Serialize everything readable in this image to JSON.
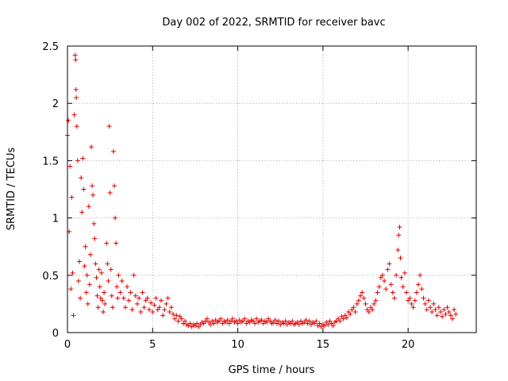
{
  "chart_data": {
    "type": "scatter",
    "title": "Day 002 of 2022, SRMTID for receiver bavc",
    "xlabel": "GPS time / hours",
    "ylabel": "SRMTID / TECUs",
    "xlim": [
      0,
      24
    ],
    "ylim": [
      0,
      2.5
    ],
    "xticks": [
      0,
      5,
      10,
      15,
      20
    ],
    "xtick_labels": [
      "0",
      "5",
      "10",
      "15",
      "20"
    ],
    "yticks": [
      0,
      0.5,
      1,
      1.5,
      2,
      2.5
    ],
    "ytick_labels": [
      "0",
      "0.5",
      "1",
      "1.5",
      "2",
      "2.5"
    ],
    "grid": true,
    "marker": "+",
    "colors": {
      "points": "#e00000",
      "grid": "#a0a0a0",
      "axes": "#000000"
    },
    "series": [
      {
        "name": "SRMTID",
        "points": [
          [
            0.0,
            1.72
          ],
          [
            0.05,
            1.85
          ],
          [
            0.1,
            0.88
          ],
          [
            0.15,
            1.45
          ],
          [
            0.2,
            0.38
          ],
          [
            0.25,
            1.18
          ],
          [
            0.3,
            0.52
          ],
          [
            0.35,
            0.15
          ],
          [
            0.4,
            1.9
          ],
          [
            0.45,
            2.42
          ],
          [
            0.48,
            2.38
          ],
          [
            0.5,
            2.12
          ],
          [
            0.52,
            2.05
          ],
          [
            0.55,
            1.8
          ],
          [
            0.6,
            1.5
          ],
          [
            0.65,
            0.45
          ],
          [
            0.7,
            0.62
          ],
          [
            0.75,
            0.3
          ],
          [
            0.8,
            1.35
          ],
          [
            0.85,
            1.05
          ],
          [
            0.9,
            1.52
          ],
          [
            0.95,
            1.25
          ],
          [
            1.0,
            0.58
          ],
          [
            1.05,
            0.75
          ],
          [
            1.1,
            0.35
          ],
          [
            1.15,
            0.5
          ],
          [
            1.2,
            0.25
          ],
          [
            1.25,
            1.1
          ],
          [
            1.3,
            0.42
          ],
          [
            1.35,
            0.68
          ],
          [
            1.4,
            1.62
          ],
          [
            1.45,
            1.28
          ],
          [
            1.5,
            1.2
          ],
          [
            1.55,
            0.95
          ],
          [
            1.6,
            0.82
          ],
          [
            1.65,
            0.6
          ],
          [
            1.7,
            0.48
          ],
          [
            1.75,
            0.32
          ],
          [
            1.8,
            0.22
          ],
          [
            1.85,
            0.55
          ],
          [
            1.9,
            0.4
          ],
          [
            1.95,
            0.3
          ],
          [
            2.0,
            0.52
          ],
          [
            2.05,
            0.28
          ],
          [
            2.1,
            0.18
          ],
          [
            2.15,
            0.35
          ],
          [
            2.2,
            0.25
          ],
          [
            2.3,
            0.78
          ],
          [
            2.35,
            0.6
          ],
          [
            2.4,
            0.45
          ],
          [
            2.45,
            1.8
          ],
          [
            2.5,
            1.22
          ],
          [
            2.55,
            0.55
          ],
          [
            2.6,
            0.32
          ],
          [
            2.65,
            0.22
          ],
          [
            2.7,
            1.58
          ],
          [
            2.75,
            1.28
          ],
          [
            2.8,
            1.0
          ],
          [
            2.85,
            0.78
          ],
          [
            2.9,
            0.4
          ],
          [
            2.95,
            0.3
          ],
          [
            3.0,
            0.5
          ],
          [
            3.1,
            0.35
          ],
          [
            3.2,
            0.45
          ],
          [
            3.3,
            0.3
          ],
          [
            3.4,
            0.22
          ],
          [
            3.5,
            0.4
          ],
          [
            3.6,
            0.28
          ],
          [
            3.7,
            0.35
          ],
          [
            3.8,
            0.2
          ],
          [
            3.9,
            0.5
          ],
          [
            4.0,
            0.32
          ],
          [
            4.1,
            0.25
          ],
          [
            4.2,
            0.3
          ],
          [
            4.3,
            0.18
          ],
          [
            4.4,
            0.35
          ],
          [
            4.5,
            0.22
          ],
          [
            4.6,
            0.28
          ],
          [
            4.7,
            0.3
          ],
          [
            4.8,
            0.2
          ],
          [
            4.9,
            0.26
          ],
          [
            5.0,
            0.18
          ],
          [
            5.1,
            0.24
          ],
          [
            5.2,
            0.3
          ],
          [
            5.3,
            0.2
          ],
          [
            5.4,
            0.22
          ],
          [
            5.5,
            0.28
          ],
          [
            5.6,
            0.15
          ],
          [
            5.7,
            0.2
          ],
          [
            5.8,
            0.25
          ],
          [
            5.9,
            0.3
          ],
          [
            6.0,
            0.18
          ],
          [
            6.1,
            0.22
          ],
          [
            6.2,
            0.16
          ],
          [
            6.3,
            0.12
          ],
          [
            6.4,
            0.15
          ],
          [
            6.5,
            0.1
          ],
          [
            6.6,
            0.14
          ],
          [
            6.7,
            0.12
          ],
          [
            6.8,
            0.08
          ],
          [
            6.9,
            0.1
          ],
          [
            7.0,
            0.07
          ],
          [
            7.1,
            0.06
          ],
          [
            7.2,
            0.08
          ],
          [
            7.3,
            0.05
          ],
          [
            7.4,
            0.07
          ],
          [
            7.5,
            0.06
          ],
          [
            7.6,
            0.08
          ],
          [
            7.7,
            0.05
          ],
          [
            7.8,
            0.07
          ],
          [
            7.9,
            0.09
          ],
          [
            8.0,
            0.08
          ],
          [
            8.1,
            0.1
          ],
          [
            8.2,
            0.12
          ],
          [
            8.3,
            0.09
          ],
          [
            8.4,
            0.07
          ],
          [
            8.5,
            0.1
          ],
          [
            8.6,
            0.08
          ],
          [
            8.7,
            0.11
          ],
          [
            8.8,
            0.09
          ],
          [
            8.9,
            0.1
          ],
          [
            9.0,
            0.12
          ],
          [
            9.1,
            0.08
          ],
          [
            9.2,
            0.1
          ],
          [
            9.3,
            0.09
          ],
          [
            9.4,
            0.11
          ],
          [
            9.5,
            0.08
          ],
          [
            9.6,
            0.1
          ],
          [
            9.7,
            0.12
          ],
          [
            9.8,
            0.09
          ],
          [
            9.9,
            0.1
          ],
          [
            10.0,
            0.08
          ],
          [
            10.1,
            0.11
          ],
          [
            10.2,
            0.09
          ],
          [
            10.3,
            0.1
          ],
          [
            10.4,
            0.12
          ],
          [
            10.5,
            0.08
          ],
          [
            10.6,
            0.1
          ],
          [
            10.7,
            0.09
          ],
          [
            10.8,
            0.11
          ],
          [
            10.9,
            0.1
          ],
          [
            11.0,
            0.08
          ],
          [
            11.1,
            0.12
          ],
          [
            11.2,
            0.09
          ],
          [
            11.3,
            0.1
          ],
          [
            11.4,
            0.11
          ],
          [
            11.5,
            0.08
          ],
          [
            11.6,
            0.1
          ],
          [
            11.7,
            0.09
          ],
          [
            11.8,
            0.12
          ],
          [
            11.9,
            0.1
          ],
          [
            12.0,
            0.08
          ],
          [
            12.1,
            0.09
          ],
          [
            12.2,
            0.11
          ],
          [
            12.3,
            0.08
          ],
          [
            12.4,
            0.1
          ],
          [
            12.5,
            0.07
          ],
          [
            12.6,
            0.09
          ],
          [
            12.7,
            0.08
          ],
          [
            12.8,
            0.1
          ],
          [
            12.9,
            0.07
          ],
          [
            13.0,
            0.09
          ],
          [
            13.1,
            0.08
          ],
          [
            13.2,
            0.1
          ],
          [
            13.3,
            0.07
          ],
          [
            13.4,
            0.08
          ],
          [
            13.5,
            0.09
          ],
          [
            13.6,
            0.07
          ],
          [
            13.7,
            0.1
          ],
          [
            13.8,
            0.08
          ],
          [
            13.9,
            0.09
          ],
          [
            14.0,
            0.11
          ],
          [
            14.1,
            0.08
          ],
          [
            14.2,
            0.1
          ],
          [
            14.3,
            0.07
          ],
          [
            14.4,
            0.09
          ],
          [
            14.5,
            0.08
          ],
          [
            14.6,
            0.1
          ],
          [
            14.7,
            0.06
          ],
          [
            14.8,
            0.08
          ],
          [
            14.9,
            0.05
          ],
          [
            15.0,
            0.07
          ],
          [
            15.1,
            0.06
          ],
          [
            15.2,
            0.09
          ],
          [
            15.3,
            0.07
          ],
          [
            15.4,
            0.1
          ],
          [
            15.5,
            0.08
          ],
          [
            15.6,
            0.06
          ],
          [
            15.7,
            0.09
          ],
          [
            15.8,
            0.1
          ],
          [
            15.9,
            0.12
          ],
          [
            16.0,
            0.1
          ],
          [
            16.1,
            0.14
          ],
          [
            16.2,
            0.12
          ],
          [
            16.3,
            0.15
          ],
          [
            16.4,
            0.13
          ],
          [
            16.5,
            0.18
          ],
          [
            16.6,
            0.16
          ],
          [
            16.7,
            0.2
          ],
          [
            16.8,
            0.22
          ],
          [
            16.9,
            0.18
          ],
          [
            17.0,
            0.25
          ],
          [
            17.1,
            0.28
          ],
          [
            17.2,
            0.32
          ],
          [
            17.3,
            0.35
          ],
          [
            17.4,
            0.3
          ],
          [
            17.5,
            0.25
          ],
          [
            17.6,
            0.2
          ],
          [
            17.7,
            0.18
          ],
          [
            17.8,
            0.22
          ],
          [
            17.9,
            0.2
          ],
          [
            18.0,
            0.25
          ],
          [
            18.1,
            0.28
          ],
          [
            18.2,
            0.35
          ],
          [
            18.3,
            0.4
          ],
          [
            18.4,
            0.48
          ],
          [
            18.5,
            0.5
          ],
          [
            18.6,
            0.45
          ],
          [
            18.7,
            0.38
          ],
          [
            18.8,
            0.55
          ],
          [
            18.9,
            0.6
          ],
          [
            19.0,
            0.42
          ],
          [
            19.1,
            0.35
          ],
          [
            19.2,
            0.3
          ],
          [
            19.3,
            0.5
          ],
          [
            19.4,
            0.72
          ],
          [
            19.45,
            0.85
          ],
          [
            19.5,
            0.92
          ],
          [
            19.55,
            0.65
          ],
          [
            19.6,
            0.48
          ],
          [
            19.7,
            0.4
          ],
          [
            19.8,
            0.52
          ],
          [
            19.9,
            0.35
          ],
          [
            20.0,
            0.28
          ],
          [
            20.1,
            0.3
          ],
          [
            20.2,
            0.25
          ],
          [
            20.3,
            0.22
          ],
          [
            20.4,
            0.28
          ],
          [
            20.5,
            0.35
          ],
          [
            20.6,
            0.42
          ],
          [
            20.7,
            0.5
          ],
          [
            20.8,
            0.38
          ],
          [
            20.9,
            0.3
          ],
          [
            21.0,
            0.25
          ],
          [
            21.1,
            0.2
          ],
          [
            21.2,
            0.28
          ],
          [
            21.3,
            0.22
          ],
          [
            21.4,
            0.18
          ],
          [
            21.5,
            0.25
          ],
          [
            21.6,
            0.2
          ],
          [
            21.7,
            0.15
          ],
          [
            21.8,
            0.22
          ],
          [
            21.9,
            0.18
          ],
          [
            22.0,
            0.14
          ],
          [
            22.1,
            0.2
          ],
          [
            22.2,
            0.16
          ],
          [
            22.3,
            0.22
          ],
          [
            22.4,
            0.18
          ],
          [
            22.5,
            0.15
          ],
          [
            22.6,
            0.12
          ],
          [
            22.7,
            0.2
          ],
          [
            22.8,
            0.16
          ]
        ]
      }
    ]
  }
}
